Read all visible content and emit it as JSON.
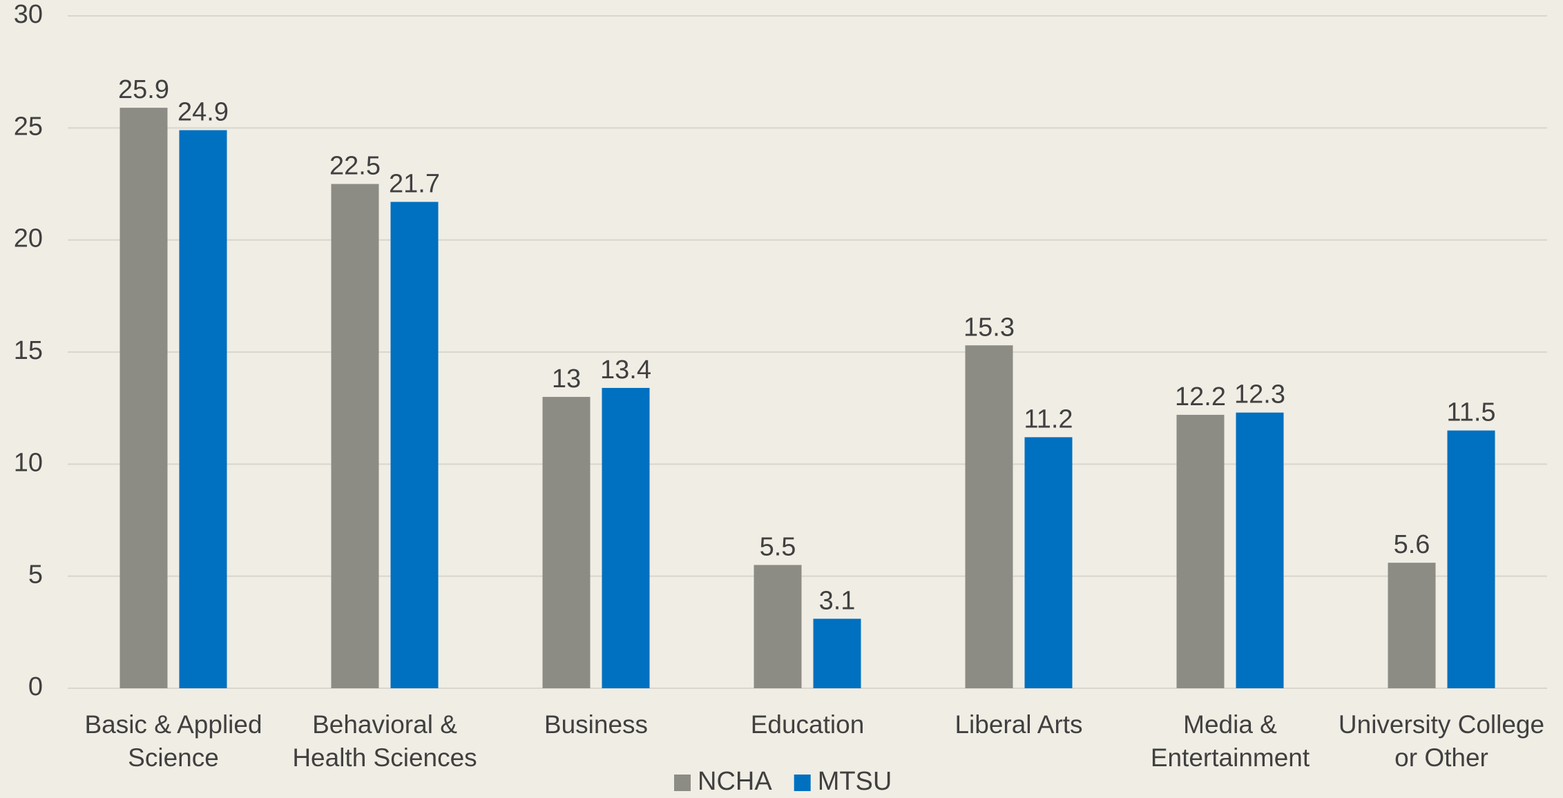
{
  "chart_data": {
    "type": "bar",
    "categories": [
      "Basic & Applied Science",
      "Behavioral & Health Sciences",
      "Business",
      "Education",
      "Liberal Arts",
      "Media & Entertainment",
      "University College or Other"
    ],
    "series": [
      {
        "name": "NCHA",
        "color": "#8c8c85",
        "values": [
          25.9,
          22.5,
          13,
          5.5,
          15.3,
          12.2,
          5.6
        ]
      },
      {
        "name": "MTSU",
        "color": "#0070c0",
        "values": [
          24.9,
          21.7,
          13.4,
          3.1,
          11.2,
          12.3,
          11.5
        ]
      }
    ],
    "ylim": [
      0,
      30
    ],
    "yticks": [
      0,
      5,
      10,
      15,
      20,
      25,
      30
    ],
    "grid": true,
    "legend": "bottom"
  }
}
